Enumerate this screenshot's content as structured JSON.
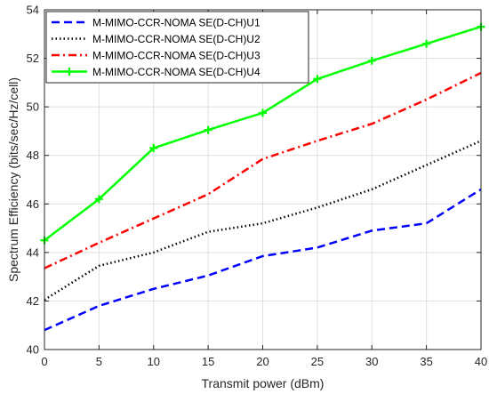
{
  "chart_data": {
    "type": "line",
    "title": "",
    "xlabel": "Transmit power (dBm)",
    "ylabel": "Spectrum Efficiency (bits/sec/Hz/cell)",
    "xlim": [
      0,
      40
    ],
    "ylim": [
      40,
      54
    ],
    "xticks": [
      0,
      5,
      10,
      15,
      20,
      25,
      30,
      35,
      40
    ],
    "yticks": [
      40,
      42,
      44,
      46,
      48,
      50,
      52,
      54
    ],
    "grid": true,
    "legend_position": "top-left",
    "x": [
      0,
      5,
      10,
      15,
      20,
      25,
      30,
      35,
      40
    ],
    "series": [
      {
        "name": "M-MIMO-CCR-NOMA SE(D-CH)U1",
        "color": "#0000ff",
        "line_style": "dashed",
        "marker": "none",
        "values": [
          40.8,
          41.8,
          42.5,
          43.05,
          43.85,
          44.2,
          44.9,
          45.2,
          46.6
        ]
      },
      {
        "name": "M-MIMO-CCR-NOMA SE(D-CH)U2",
        "color": "#000000",
        "line_style": "dotted",
        "marker": "none",
        "values": [
          42.05,
          43.45,
          44.0,
          44.85,
          45.2,
          45.85,
          46.6,
          47.6,
          48.6
        ]
      },
      {
        "name": "M-MIMO-CCR-NOMA SE(D-CH)U3",
        "color": "#ff0000",
        "line_style": "dashdot",
        "marker": "none",
        "values": [
          43.35,
          44.4,
          45.4,
          46.4,
          47.85,
          48.6,
          49.3,
          50.3,
          51.4
        ]
      },
      {
        "name": "M-MIMO-CCR-NOMA SE(D-CH)U4",
        "color": "#00ff00",
        "line_style": "solid",
        "marker": "plus",
        "values": [
          44.5,
          46.2,
          48.3,
          49.05,
          49.75,
          51.15,
          51.9,
          52.6,
          53.3
        ]
      }
    ]
  }
}
